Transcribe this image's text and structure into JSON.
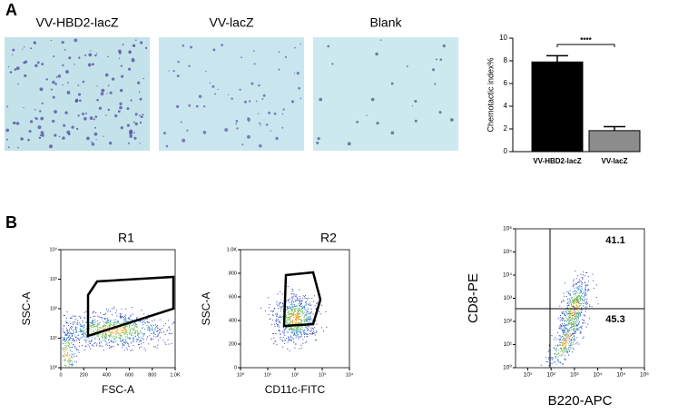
{
  "panels": [
    "A",
    "B"
  ],
  "images": [
    "VV-HBD2-lacZ",
    "VV-lacZ",
    "Blank"
  ],
  "chart_data": [
    {
      "type": "bar",
      "ylabel": "Chemotactic index%",
      "categories": [
        "VV-HBD2-lacZ",
        "VV-lacZ"
      ],
      "values": [
        7.9,
        1.85
      ],
      "errors": [
        0.55,
        0.35
      ],
      "colors": [
        "#000000",
        "#8c8c8c"
      ],
      "ylim": [
        0,
        10
      ],
      "yticks": [
        0,
        2,
        4,
        6,
        8,
        10
      ],
      "significance": "****"
    },
    {
      "type": "scatter",
      "xlabel": "FSC-A",
      "ylabel": "SSC-A",
      "gates": [
        "R1"
      ],
      "xlim": [
        0,
        1000
      ],
      "xticks": [
        0,
        200,
        400,
        600,
        800,
        {
          "value": 1000,
          "label": "1.0K"
        }
      ],
      "ylim": [
        1,
        10000
      ],
      "ylog": true,
      "yticks": [
        {
          "value": 1,
          "label": "10⁰"
        },
        {
          "value": 10,
          "label": "10¹"
        },
        {
          "value": 100,
          "label": "10²"
        },
        {
          "value": 1000,
          "label": "10³"
        },
        {
          "value": 10000,
          "label": "10⁴"
        }
      ]
    },
    {
      "type": "scatter",
      "xlabel": "CD11c-FITC",
      "ylabel": "SSC-A",
      "gates": [
        "R2"
      ],
      "xlim": [
        1,
        10000
      ],
      "xlog": true,
      "xticks": [
        {
          "value": 1,
          "label": "10⁰"
        },
        {
          "value": 10,
          "label": "10¹"
        },
        {
          "value": 100,
          "label": "10²"
        },
        {
          "value": 1000,
          "label": "10³"
        },
        {
          "value": 10000,
          "label": "10⁴"
        }
      ],
      "ylim": [
        0,
        1000
      ],
      "yticks": [
        0,
        200,
        400,
        600,
        800,
        {
          "value": 1000,
          "label": "1.0K"
        }
      ]
    },
    {
      "type": "scatter",
      "xlabel": "B220-APC",
      "ylabel": "CD8-PE",
      "quadrant_values": [
        41.1,
        45.3
      ],
      "xlim": [
        3,
        1000000
      ],
      "xlog": true,
      "xticks": [
        {
          "value": 10,
          "label": "10¹"
        },
        {
          "value": 100,
          "label": "10²"
        },
        {
          "value": 1000,
          "label": "10³"
        },
        {
          "value": 10000,
          "label": "10⁴"
        },
        {
          "value": 100000,
          "label": "10⁵"
        },
        {
          "value": 1000000,
          "label": "10⁶"
        }
      ],
      "ylim": [
        1,
        1000000
      ],
      "ylog": true,
      "yticks": [
        {
          "value": 1,
          "label": "10⁰"
        },
        {
          "value": 10,
          "label": "10¹"
        },
        {
          "value": 100,
          "label": "10²"
        },
        {
          "value": 1000,
          "label": "10³"
        },
        {
          "value": 10000,
          "label": "10⁴"
        },
        {
          "value": 100000,
          "label": "10⁵"
        },
        {
          "value": 1000000,
          "label": "10⁶"
        }
      ]
    }
  ]
}
